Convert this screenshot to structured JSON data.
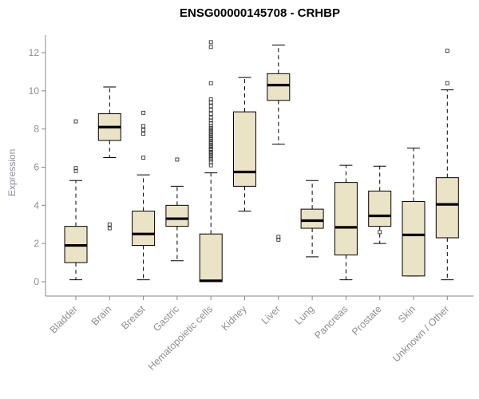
{
  "title": "ENSG00000145708 - CRHBP",
  "chart_data": {
    "type": "boxplot",
    "title": "ENSG00000145708 - CRHBP",
    "ylabel": "Expression",
    "ylim": [
      0,
      13
    ],
    "yticks": [
      0,
      2,
      4,
      6,
      8,
      10,
      12
    ],
    "grid": false,
    "legend": "none",
    "categories": [
      "Bladder",
      "Brain",
      "Breast",
      "Gastric",
      "Hematopoietic cells",
      "Kidney",
      "Liver",
      "Lung",
      "Pancreas",
      "Prostate",
      "Skin",
      "Unknown / Other"
    ],
    "boxes": [
      {
        "whislo": 0.1,
        "q1": 1.0,
        "med": 1.9,
        "q3": 2.9,
        "whishi": 5.3,
        "outliers": [
          5.8,
          5.95,
          8.4
        ]
      },
      {
        "whislo": 6.5,
        "q1": 7.4,
        "med": 8.1,
        "q3": 8.8,
        "whishi": 10.2,
        "outliers": [
          2.8,
          3.0
        ]
      },
      {
        "whislo": 0.1,
        "q1": 1.9,
        "med": 2.5,
        "q3": 3.7,
        "whishi": 5.6,
        "outliers": [
          6.5,
          7.75,
          7.95,
          8.15,
          8.85
        ]
      },
      {
        "whislo": 1.1,
        "q1": 2.9,
        "med": 3.3,
        "q3": 4.0,
        "whishi": 5.0,
        "outliers": [
          6.4
        ]
      },
      {
        "whislo": 0.0,
        "q1": 0.0,
        "med": 0.05,
        "q3": 2.5,
        "whishi": 5.7,
        "outliers": [
          6.1,
          6.25,
          6.4,
          6.5,
          6.6,
          6.7,
          6.8,
          6.9,
          6.95,
          7.05,
          7.15,
          7.25,
          7.35,
          7.45,
          7.55,
          7.65,
          7.75,
          7.85,
          7.95,
          8.05,
          8.15,
          8.3,
          8.45,
          8.6,
          8.8,
          9.0,
          9.2,
          9.4,
          9.55,
          10.4,
          12.3,
          12.55
        ]
      },
      {
        "whislo": 3.7,
        "q1": 5.0,
        "med": 5.75,
        "q3": 8.9,
        "whishi": 10.7,
        "outliers": []
      },
      {
        "whislo": 7.2,
        "q1": 9.5,
        "med": 10.3,
        "q3": 10.9,
        "whishi": 12.4,
        "outliers": [
          2.2,
          2.35
        ]
      },
      {
        "whislo": 1.3,
        "q1": 2.8,
        "med": 3.2,
        "q3": 3.8,
        "whishi": 5.3,
        "outliers": []
      },
      {
        "whislo": 0.1,
        "q1": 1.4,
        "med": 2.85,
        "q3": 5.2,
        "whishi": 6.1,
        "outliers": []
      },
      {
        "whislo": 2.0,
        "q1": 2.9,
        "med": 3.45,
        "q3": 4.75,
        "whishi": 6.05,
        "outliers": [
          2.6
        ]
      },
      {
        "whislo": 0.3,
        "q1": 0.3,
        "med": 2.45,
        "q3": 4.2,
        "whishi": 7.0,
        "outliers": []
      },
      {
        "whislo": 0.1,
        "q1": 2.3,
        "med": 4.05,
        "q3": 5.45,
        "whishi": 10.05,
        "outliers": [
          10.4,
          12.1
        ]
      }
    ],
    "colors": {
      "box_fill": "#ebe3c6",
      "box_stroke": "#000000",
      "median": "#000000",
      "axis": "#878787",
      "tick_label": "#8f8f8f",
      "category_label": "#8f8f8f",
      "title": "#000000",
      "outlier": "#333333",
      "background": "#ffffff"
    }
  }
}
